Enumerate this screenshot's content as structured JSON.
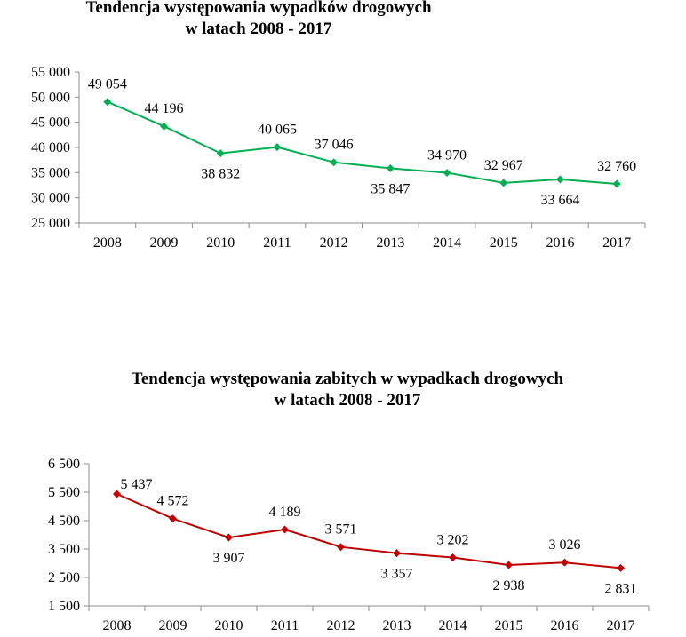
{
  "chart_data": [
    {
      "type": "line",
      "title": "Tendencja występowania  wypadków drogowych",
      "subtitle": "w latach 2008 - 2017",
      "xlabel": "",
      "ylabel": "",
      "categories": [
        "2008",
        "2009",
        "2010",
        "2011",
        "2012",
        "2013",
        "2014",
        "2015",
        "2016",
        "2017"
      ],
      "series": [
        {
          "values": [
            49054,
            44196,
            38832,
            40065,
            37046,
            35847,
            34970,
            32967,
            33664,
            32760
          ],
          "color": "#00b050"
        }
      ],
      "data_labels": [
        "49 054",
        "44 196",
        "38 832",
        "40 065",
        "37 046",
        "35 847",
        "34 970",
        "32 967",
        "33 664",
        "32 760"
      ],
      "label_positions": [
        "above",
        "above",
        "below",
        "above",
        "above",
        "below",
        "above",
        "above",
        "below",
        "above"
      ],
      "ylim": [
        25000,
        55000
      ],
      "yticks": [
        25000,
        30000,
        35000,
        40000,
        45000,
        50000,
        55000
      ],
      "ytick_labels": [
        "25 000",
        "30 000",
        "35 000",
        "40 000",
        "45 000",
        "50 000",
        "55 000"
      ],
      "grid": false,
      "legend": "none"
    },
    {
      "type": "line",
      "title": "Tendencja występowania zabitych w wypadkach drogowych",
      "subtitle": "w latach 2008 - 2017",
      "xlabel": "",
      "ylabel": "",
      "categories": [
        "2008",
        "2009",
        "2010",
        "2011",
        "2012",
        "2013",
        "2014",
        "2015",
        "2016",
        "2017"
      ],
      "series": [
        {
          "values": [
            5437,
            4572,
            3907,
            4189,
            3571,
            3357,
            3202,
            2938,
            3026,
            2831
          ],
          "color": "#c00000"
        }
      ],
      "data_labels": [
        "5 437",
        "4 572",
        "3 907",
        "4 189",
        "3 571",
        "3 357",
        "3 202",
        "2 938",
        "3 026",
        "2 831"
      ],
      "label_positions": [
        "above-right",
        "above",
        "below",
        "above",
        "above",
        "below",
        "above",
        "below",
        "above",
        "below"
      ],
      "ylim": [
        1500,
        6500
      ],
      "yticks": [
        1500,
        2500,
        3500,
        4500,
        5500,
        6500
      ],
      "ytick_labels": [
        "1 500",
        "2 500",
        "3 500",
        "4 500",
        "5 500",
        "6 500"
      ],
      "grid": false,
      "legend": "none"
    }
  ]
}
